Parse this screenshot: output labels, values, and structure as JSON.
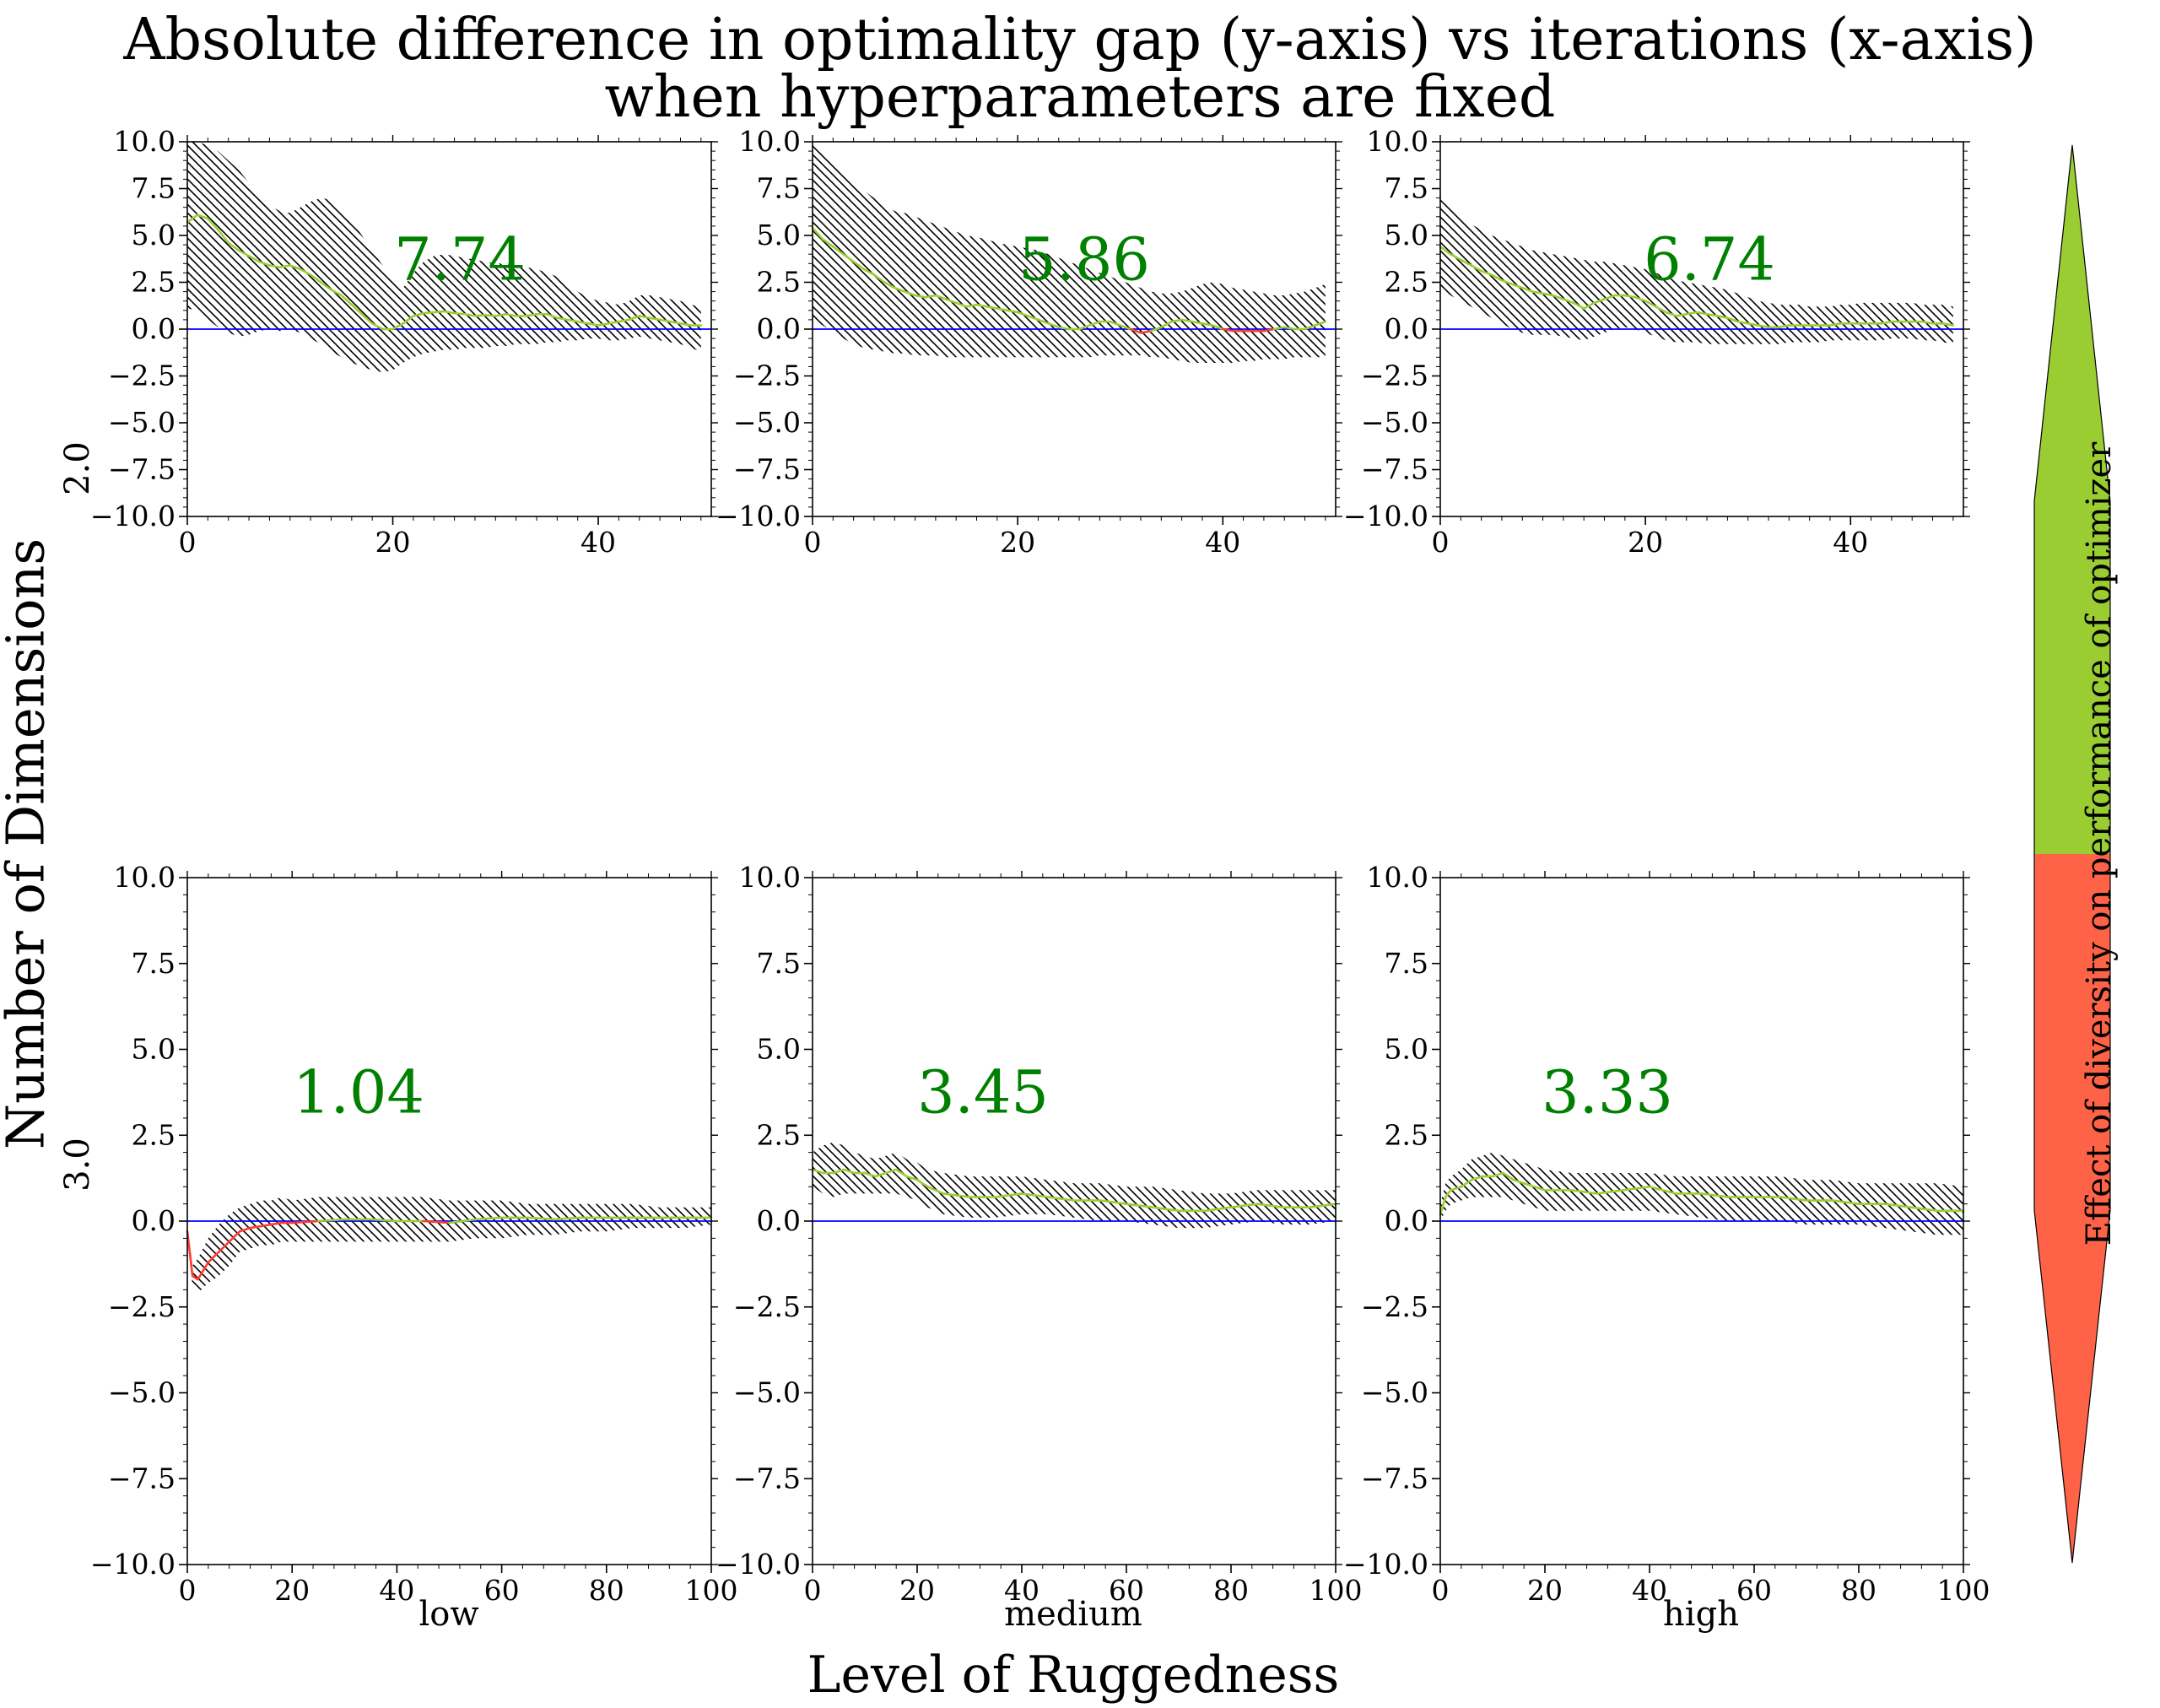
{
  "title_line1": "Absolute difference in optimality gap (y-axis) vs iterations (x-axis)",
  "title_line2": "when hyperparameters are fixed",
  "xlabel": "Level of Ruggedness",
  "ylabel": "Number of Dimensions",
  "column_labels": [
    "low",
    "medium",
    "high"
  ],
  "row_labels": [
    "2.0",
    "3.0"
  ],
  "colorbar": {
    "label": "Effect of diversity on performance of optimizer",
    "positive_color": "#9acd32",
    "negative_color": "#ff6347"
  },
  "colors": {
    "zero_line": "#0000ff",
    "positive_line": "#9acd32",
    "negative_line": "#ff3b30",
    "score_text": "#008000",
    "hatch": "#000000"
  },
  "chart_data": [
    {
      "type": "area",
      "panel": "2.0-low",
      "score": "7.74",
      "xlim": [
        0,
        51
      ],
      "ylim": [
        -10,
        10
      ],
      "xticks": [
        "0",
        "20",
        "40"
      ],
      "yticks": [
        "−10.0",
        "−7.5",
        "−5.0",
        "−2.5",
        "0.0",
        "2.5",
        "5.0",
        "7.5",
        "10.0"
      ],
      "x": [
        0,
        1,
        2,
        3,
        4,
        5,
        6,
        7,
        8,
        9,
        10,
        11,
        12,
        13,
        14,
        15,
        16,
        17,
        18,
        19,
        20,
        21,
        22,
        23,
        24,
        25,
        26,
        27,
        28,
        29,
        30,
        31,
        32,
        33,
        34,
        35,
        36,
        37,
        38,
        39,
        40,
        41,
        42,
        43,
        44,
        45,
        46,
        47,
        48,
        49,
        50
      ],
      "mean": [
        5.7,
        6.1,
        5.9,
        5.3,
        4.6,
        4.2,
        3.9,
        3.6,
        3.4,
        3.3,
        3.4,
        3.2,
        2.9,
        2.5,
        2.1,
        1.8,
        1.3,
        0.8,
        0.3,
        0.0,
        0.0,
        0.3,
        0.7,
        0.85,
        0.9,
        0.95,
        0.85,
        0.8,
        0.7,
        0.75,
        0.7,
        0.8,
        0.7,
        0.7,
        0.8,
        0.8,
        0.6,
        0.5,
        0.4,
        0.3,
        0.2,
        0.3,
        0.4,
        0.5,
        0.7,
        0.6,
        0.5,
        0.4,
        0.3,
        0.2,
        0.2
      ],
      "upper": [
        10.0,
        10.0,
        9.8,
        9.5,
        9.0,
        8.5,
        7.8,
        7.2,
        6.6,
        6.3,
        6.2,
        6.5,
        6.8,
        7.0,
        6.9,
        6.4,
        5.8,
        5.0,
        4.2,
        3.4,
        2.6,
        2.2,
        3.0,
        3.6,
        3.9,
        4.0,
        3.9,
        3.8,
        3.7,
        3.6,
        3.5,
        3.5,
        3.4,
        3.3,
        3.2,
        3.0,
        2.8,
        2.4,
        2.0,
        1.7,
        1.5,
        1.4,
        1.3,
        1.5,
        1.8,
        1.8,
        1.7,
        1.6,
        1.5,
        1.3,
        1.2
      ],
      "lower": [
        1.1,
        1.0,
        0.5,
        0.1,
        -0.2,
        -0.4,
        -0.3,
        -0.1,
        0.0,
        -0.1,
        0.0,
        -0.2,
        -0.5,
        -0.8,
        -1.2,
        -1.5,
        -1.8,
        -2.0,
        -2.2,
        -2.3,
        -2.2,
        -1.8,
        -1.5,
        -1.3,
        -1.2,
        -1.1,
        -1.1,
        -1.0,
        -1.0,
        -1.0,
        -0.9,
        -0.9,
        -0.8,
        -0.8,
        -0.8,
        -0.7,
        -0.7,
        -0.6,
        -0.6,
        -0.5,
        -0.5,
        -0.6,
        -0.6,
        -0.5,
        -0.4,
        -0.5,
        -0.6,
        -0.7,
        -0.8,
        -1.0,
        -1.2
      ]
    },
    {
      "type": "area",
      "panel": "2.0-medium",
      "score": "5.86",
      "xlim": [
        0,
        51
      ],
      "ylim": [
        -10,
        10
      ],
      "xticks": [
        "0",
        "20",
        "40"
      ],
      "yticks": [
        "−10.0",
        "−7.5",
        "−5.0",
        "−2.5",
        "0.0",
        "2.5",
        "5.0",
        "7.5",
        "10.0"
      ],
      "x": [
        0,
        1,
        2,
        3,
        4,
        5,
        6,
        7,
        8,
        9,
        10,
        11,
        12,
        13,
        14,
        15,
        16,
        17,
        18,
        19,
        20,
        21,
        22,
        23,
        24,
        25,
        26,
        27,
        28,
        29,
        30,
        31,
        32,
        33,
        34,
        35,
        36,
        37,
        38,
        39,
        40,
        41,
        42,
        43,
        44,
        45,
        46,
        47,
        48,
        49,
        50
      ],
      "mean": [
        5.4,
        4.8,
        4.4,
        4.0,
        3.6,
        3.2,
        2.9,
        2.5,
        2.2,
        2.0,
        1.8,
        1.7,
        1.8,
        1.6,
        1.4,
        1.2,
        1.3,
        1.2,
        1.1,
        1.0,
        0.9,
        0.7,
        0.5,
        0.3,
        0.1,
        0.0,
        0.0,
        0.2,
        0.4,
        0.4,
        0.2,
        0.0,
        -0.2,
        -0.1,
        0.1,
        0.4,
        0.5,
        0.4,
        0.3,
        0.2,
        0.0,
        -0.1,
        -0.1,
        -0.1,
        -0.1,
        0.0,
        0.1,
        0.0,
        0.0,
        0.2,
        0.4
      ],
      "upper": [
        9.9,
        9.4,
        8.8,
        8.2,
        7.8,
        7.4,
        7.0,
        6.6,
        6.3,
        6.2,
        6.0,
        5.8,
        5.6,
        5.4,
        5.2,
        5.0,
        4.9,
        4.8,
        4.6,
        4.5,
        4.4,
        4.3,
        4.2,
        4.0,
        3.8,
        3.6,
        3.4,
        3.2,
        3.0,
        2.8,
        2.6,
        2.4,
        2.2,
        2.0,
        1.9,
        1.9,
        2.0,
        2.2,
        2.4,
        2.5,
        2.4,
        2.2,
        2.1,
        2.0,
        1.9,
        1.8,
        1.8,
        1.9,
        2.0,
        2.2,
        2.4
      ],
      "lower": [
        0.5,
        0.2,
        -0.2,
        -0.5,
        -0.8,
        -1.0,
        -1.1,
        -1.2,
        -1.3,
        -1.3,
        -1.4,
        -1.4,
        -1.4,
        -1.5,
        -1.5,
        -1.5,
        -1.5,
        -1.5,
        -1.5,
        -1.5,
        -1.5,
        -1.5,
        -1.5,
        -1.5,
        -1.5,
        -1.5,
        -1.5,
        -1.5,
        -1.4,
        -1.4,
        -1.4,
        -1.4,
        -1.4,
        -1.5,
        -1.5,
        -1.6,
        -1.7,
        -1.8,
        -1.8,
        -1.8,
        -1.8,
        -1.8,
        -1.7,
        -1.7,
        -1.6,
        -1.6,
        -1.6,
        -1.5,
        -1.5,
        -1.5,
        -1.5
      ]
    },
    {
      "type": "area",
      "panel": "2.0-high",
      "score": "6.74",
      "xlim": [
        0,
        51
      ],
      "ylim": [
        -10,
        10
      ],
      "xticks": [
        "0",
        "20",
        "40"
      ],
      "yticks": [
        "−10.0",
        "−7.5",
        "−5.0",
        "−2.5",
        "0.0",
        "2.5",
        "5.0",
        "7.5",
        "10.0"
      ],
      "x": [
        0,
        1,
        2,
        3,
        4,
        5,
        6,
        7,
        8,
        9,
        10,
        11,
        12,
        13,
        14,
        15,
        16,
        17,
        18,
        19,
        20,
        21,
        22,
        23,
        24,
        25,
        26,
        27,
        28,
        29,
        30,
        31,
        32,
        33,
        34,
        35,
        36,
        37,
        38,
        39,
        40,
        41,
        42,
        43,
        44,
        45,
        46,
        47,
        48,
        49,
        50
      ],
      "mean": [
        4.4,
        4.0,
        3.7,
        3.4,
        3.1,
        2.9,
        2.6,
        2.4,
        2.2,
        2.0,
        1.9,
        1.8,
        1.6,
        1.4,
        1.1,
        1.4,
        1.6,
        1.8,
        1.8,
        1.7,
        1.5,
        1.2,
        0.9,
        0.7,
        0.8,
        0.9,
        0.8,
        0.7,
        0.6,
        0.4,
        0.3,
        0.2,
        0.1,
        0.1,
        0.2,
        0.2,
        0.2,
        0.2,
        0.2,
        0.3,
        0.3,
        0.3,
        0.3,
        0.3,
        0.4,
        0.4,
        0.4,
        0.4,
        0.3,
        0.3,
        0.2
      ],
      "upper": [
        7.0,
        6.5,
        6.0,
        5.6,
        5.3,
        5.0,
        4.8,
        4.6,
        4.4,
        4.2,
        4.1,
        4.0,
        3.9,
        3.8,
        3.7,
        3.6,
        3.6,
        3.5,
        3.4,
        3.3,
        3.2,
        3.0,
        2.8,
        2.6,
        2.5,
        2.4,
        2.3,
        2.2,
        2.1,
        1.9,
        1.7,
        1.5,
        1.4,
        1.3,
        1.3,
        1.3,
        1.2,
        1.2,
        1.2,
        1.3,
        1.3,
        1.4,
        1.4,
        1.4,
        1.4,
        1.4,
        1.4,
        1.3,
        1.3,
        1.3,
        1.2
      ],
      "lower": [
        2.2,
        1.8,
        1.5,
        1.2,
        0.9,
        0.6,
        0.3,
        0.0,
        -0.2,
        -0.3,
        -0.3,
        -0.3,
        -0.4,
        -0.5,
        -0.6,
        -0.4,
        -0.2,
        0.0,
        0.1,
        0.0,
        -0.2,
        -0.4,
        -0.6,
        -0.7,
        -0.7,
        -0.7,
        -0.8,
        -0.8,
        -0.8,
        -0.8,
        -0.8,
        -0.8,
        -0.8,
        -0.8,
        -0.7,
        -0.7,
        -0.7,
        -0.7,
        -0.6,
        -0.6,
        -0.6,
        -0.6,
        -0.6,
        -0.6,
        -0.5,
        -0.5,
        -0.5,
        -0.6,
        -0.6,
        -0.7,
        -0.8
      ]
    },
    {
      "type": "area",
      "panel": "3.0-low",
      "score": "1.04",
      "xlim": [
        0,
        100
      ],
      "ylim": [
        -10,
        10
      ],
      "xticks": [
        "0",
        "20",
        "40",
        "60",
        "80",
        "100"
      ],
      "yticks": [
        "−10.0",
        "−7.5",
        "−5.0",
        "−2.5",
        "0.0",
        "2.5",
        "5.0",
        "7.5",
        "10.0"
      ],
      "x": [
        0,
        1,
        2,
        4,
        6,
        8,
        10,
        12,
        14,
        16,
        18,
        20,
        25,
        30,
        35,
        40,
        45,
        50,
        55,
        60,
        65,
        70,
        75,
        80,
        85,
        90,
        95,
        100
      ],
      "mean": [
        -0.3,
        -1.6,
        -1.7,
        -1.2,
        -0.9,
        -0.6,
        -0.3,
        -0.2,
        -0.15,
        -0.1,
        -0.05,
        -0.05,
        0.0,
        0.05,
        0.05,
        0.0,
        0.0,
        -0.05,
        0.05,
        0.1,
        0.1,
        0.05,
        0.1,
        0.1,
        0.1,
        0.1,
        0.1,
        0.1
      ],
      "upper": [
        -0.1,
        -1.3,
        -1.1,
        -0.5,
        -0.1,
        0.2,
        0.4,
        0.5,
        0.6,
        0.6,
        0.7,
        0.6,
        0.7,
        0.7,
        0.7,
        0.7,
        0.7,
        0.6,
        0.6,
        0.6,
        0.5,
        0.5,
        0.5,
        0.5,
        0.5,
        0.4,
        0.4,
        0.4
      ],
      "lower": [
        -0.5,
        -1.9,
        -2.1,
        -1.8,
        -1.6,
        -1.3,
        -0.9,
        -0.8,
        -0.7,
        -0.7,
        -0.6,
        -0.6,
        -0.6,
        -0.6,
        -0.6,
        -0.6,
        -0.6,
        -0.6,
        -0.5,
        -0.5,
        -0.4,
        -0.4,
        -0.3,
        -0.3,
        -0.2,
        -0.2,
        -0.2,
        -0.1
      ]
    },
    {
      "type": "area",
      "panel": "3.0-medium",
      "score": "3.45",
      "xlim": [
        0,
        100
      ],
      "ylim": [
        -10,
        10
      ],
      "xticks": [
        "0",
        "20",
        "40",
        "60",
        "80",
        "100"
      ],
      "yticks": [
        "−10.0",
        "−7.5",
        "−5.0",
        "−2.5",
        "0.0",
        "2.5",
        "5.0",
        "7.5",
        "10.0"
      ],
      "x": [
        0,
        2,
        4,
        6,
        8,
        10,
        12,
        14,
        16,
        18,
        20,
        22,
        25,
        30,
        35,
        40,
        45,
        50,
        55,
        60,
        65,
        70,
        75,
        80,
        85,
        90,
        95,
        100
      ],
      "mean": [
        1.5,
        1.4,
        1.4,
        1.5,
        1.4,
        1.4,
        1.3,
        1.4,
        1.5,
        1.3,
        1.2,
        1.0,
        0.8,
        0.7,
        0.7,
        0.8,
        0.7,
        0.6,
        0.6,
        0.5,
        0.4,
        0.3,
        0.3,
        0.4,
        0.5,
        0.4,
        0.4,
        0.5
      ],
      "upper": [
        2.0,
        2.2,
        2.3,
        2.2,
        2.0,
        1.9,
        1.8,
        1.9,
        2.0,
        1.8,
        1.7,
        1.5,
        1.4,
        1.3,
        1.3,
        1.3,
        1.2,
        1.1,
        1.1,
        1.0,
        1.0,
        0.9,
        0.8,
        0.8,
        0.9,
        0.9,
        0.9,
        0.9
      ],
      "lower": [
        1.0,
        0.8,
        0.7,
        0.8,
        0.8,
        0.8,
        0.8,
        0.8,
        0.8,
        0.7,
        0.6,
        0.4,
        0.2,
        0.1,
        0.1,
        0.2,
        0.2,
        0.1,
        0.0,
        0.0,
        -0.1,
        -0.2,
        -0.2,
        -0.1,
        0.0,
        -0.1,
        -0.1,
        0.0
      ]
    },
    {
      "type": "area",
      "panel": "3.0-high",
      "score": "3.33",
      "xlim": [
        0,
        100
      ],
      "ylim": [
        -10,
        10
      ],
      "xticks": [
        "0",
        "20",
        "40",
        "60",
        "80",
        "100"
      ],
      "yticks": [
        "−10.0",
        "−7.5",
        "−5.0",
        "−2.5",
        "0.0",
        "2.5",
        "5.0",
        "7.5",
        "10.0"
      ],
      "x": [
        0,
        1,
        2,
        4,
        6,
        8,
        10,
        12,
        14,
        16,
        18,
        20,
        25,
        30,
        35,
        40,
        45,
        50,
        55,
        60,
        65,
        70,
        75,
        80,
        85,
        90,
        95,
        100
      ],
      "mean": [
        0.2,
        0.7,
        0.9,
        1.0,
        1.2,
        1.3,
        1.3,
        1.4,
        1.2,
        1.1,
        1.0,
        0.9,
        0.9,
        0.8,
        0.9,
        1.0,
        0.8,
        0.8,
        0.7,
        0.7,
        0.7,
        0.6,
        0.6,
        0.5,
        0.5,
        0.4,
        0.3,
        0.3
      ],
      "upper": [
        0.5,
        1.1,
        1.3,
        1.5,
        1.8,
        1.9,
        2.0,
        1.9,
        1.8,
        1.7,
        1.6,
        1.5,
        1.4,
        1.4,
        1.4,
        1.4,
        1.3,
        1.3,
        1.3,
        1.3,
        1.3,
        1.2,
        1.2,
        1.1,
        1.1,
        1.1,
        1.1,
        1.0
      ],
      "lower": [
        0.0,
        0.3,
        0.5,
        0.6,
        0.7,
        0.7,
        0.7,
        0.7,
        0.6,
        0.5,
        0.4,
        0.3,
        0.3,
        0.3,
        0.3,
        0.3,
        0.2,
        0.1,
        0.0,
        0.0,
        0.0,
        -0.1,
        -0.1,
        -0.1,
        -0.2,
        -0.3,
        -0.4,
        -0.4
      ]
    }
  ]
}
